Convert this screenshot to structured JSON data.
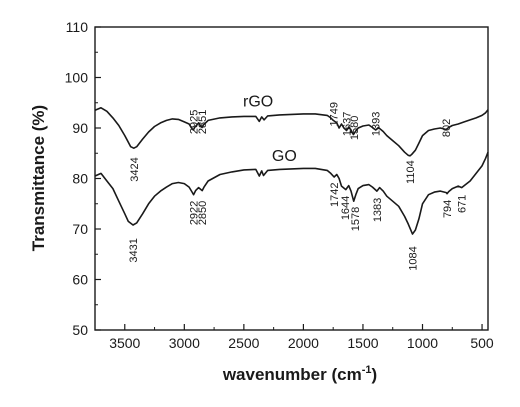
{
  "chart_data": {
    "type": "line",
    "title": "",
    "xlabel": "wavenumber (cm",
    "xlabel_sup": "-1",
    "xlabel_close": ")",
    "ylabel": "Transmittance (%)",
    "xlim": [
      3750,
      450
    ],
    "ylim": [
      50,
      110
    ],
    "x_reversed": true,
    "x_ticks": [
      3500,
      3000,
      2500,
      2000,
      1500,
      1000,
      500
    ],
    "x_tick_labels": [
      "3500",
      "3000",
      "2500",
      "2000",
      "1500",
      "1000",
      "500"
    ],
    "y_ticks": [
      50,
      60,
      70,
      80,
      90,
      100,
      110
    ],
    "y_tick_labels": [
      "50",
      "60",
      "70",
      "80",
      "90",
      "100",
      "110"
    ],
    "grid": false,
    "legend": "none",
    "line_color": "#1a1a1a",
    "series": [
      {
        "name": "rGO",
        "x": [
          3750,
          3700,
          3650,
          3600,
          3550,
          3500,
          3450,
          3424,
          3400,
          3350,
          3300,
          3250,
          3200,
          3150,
          3100,
          3050,
          3000,
          2960,
          2940,
          2925,
          2910,
          2880,
          2860,
          2851,
          2840,
          2800,
          2700,
          2600,
          2500,
          2400,
          2370,
          2350,
          2330,
          2300,
          2200,
          2100,
          2000,
          1900,
          1800,
          1770,
          1749,
          1720,
          1700,
          1680,
          1660,
          1637,
          1620,
          1600,
          1580,
          1560,
          1540,
          1500,
          1450,
          1420,
          1393,
          1370,
          1330,
          1300,
          1250,
          1200,
          1150,
          1120,
          1104,
          1090,
          1060,
          1030,
          1000,
          950,
          900,
          850,
          802,
          780,
          750,
          700,
          650,
          600,
          550,
          500,
          470,
          450
        ],
        "y": [
          93.5,
          94.0,
          93.3,
          92.0,
          90.5,
          88.5,
          86.3,
          86.0,
          86.3,
          87.8,
          89.2,
          90.3,
          91.0,
          91.5,
          91.8,
          91.7,
          91.2,
          90.8,
          90.0,
          89.6,
          90.2,
          91.0,
          90.3,
          90.1,
          90.6,
          91.5,
          92.0,
          92.2,
          92.3,
          92.3,
          91.3,
          92.2,
          91.6,
          92.4,
          92.6,
          92.7,
          92.8,
          92.8,
          92.5,
          92.0,
          91.5,
          91.0,
          90.0,
          90.8,
          90.0,
          89.5,
          90.2,
          89.6,
          88.7,
          89.4,
          90.0,
          90.4,
          90.6,
          90.1,
          89.6,
          90.1,
          89.3,
          88.5,
          87.5,
          86.5,
          85.2,
          84.6,
          84.5,
          84.8,
          85.6,
          87.0,
          88.5,
          89.5,
          89.8,
          90.0,
          89.7,
          90.1,
          90.5,
          90.8,
          91.2,
          91.6,
          92.0,
          92.5,
          93.0,
          93.6
        ]
      },
      {
        "name": "GO",
        "x": [
          3750,
          3700,
          3650,
          3600,
          3550,
          3500,
          3470,
          3431,
          3400,
          3350,
          3300,
          3250,
          3200,
          3150,
          3100,
          3050,
          3000,
          2960,
          2935,
          2922,
          2905,
          2880,
          2860,
          2850,
          2835,
          2800,
          2700,
          2600,
          2500,
          2400,
          2370,
          2350,
          2335,
          2300,
          2200,
          2100,
          2000,
          1900,
          1800,
          1770,
          1742,
          1720,
          1700,
          1680,
          1644,
          1620,
          1600,
          1578,
          1560,
          1540,
          1500,
          1450,
          1420,
          1383,
          1360,
          1330,
          1300,
          1250,
          1200,
          1150,
          1120,
          1084,
          1060,
          1030,
          1000,
          950,
          900,
          850,
          800,
          794,
          780,
          750,
          700,
          671,
          650,
          600,
          550,
          500,
          470,
          450
        ],
        "y": [
          80.5,
          81.0,
          79.5,
          78.0,
          75.5,
          73.0,
          71.5,
          70.8,
          71.2,
          73.0,
          75.0,
          76.5,
          77.5,
          78.3,
          79.0,
          79.2,
          79.0,
          78.3,
          77.3,
          76.8,
          77.6,
          78.2,
          77.8,
          77.6,
          78.3,
          79.5,
          80.8,
          81.3,
          81.7,
          81.8,
          80.5,
          81.5,
          80.6,
          81.6,
          81.8,
          81.9,
          82.0,
          82.0,
          81.6,
          81.0,
          80.3,
          80.8,
          80.0,
          78.5,
          77.8,
          78.6,
          77.5,
          75.5,
          76.8,
          78.0,
          78.6,
          78.8,
          78.3,
          77.5,
          78.2,
          77.5,
          76.5,
          75.5,
          74.5,
          72.5,
          71.0,
          69.0,
          69.8,
          72.0,
          75.0,
          76.8,
          77.3,
          77.5,
          77.2,
          77.0,
          77.4,
          78.0,
          78.5,
          78.2,
          78.6,
          79.5,
          81.0,
          82.5,
          84.0,
          85.2
        ]
      }
    ],
    "annotations": [
      {
        "text": "rGO",
        "x": 2380,
        "y": 94.3,
        "kind": "series"
      },
      {
        "text": "GO",
        "x": 2160,
        "y": 83.5,
        "kind": "series"
      },
      {
        "text": "3424",
        "x": 3424,
        "y": 84.2,
        "kind": "below"
      },
      {
        "text": "2925",
        "x": 2925,
        "y": 88.8,
        "kind": "above"
      },
      {
        "text": "2851",
        "x": 2851,
        "y": 88.8,
        "kind": "above"
      },
      {
        "text": "1749",
        "x": 1749,
        "y": 90.3,
        "kind": "above"
      },
      {
        "text": "1637",
        "x": 1637,
        "y": 88.4,
        "kind": "above"
      },
      {
        "text": "1580",
        "x": 1575,
        "y": 87.6,
        "kind": "above"
      },
      {
        "text": "1393",
        "x": 1393,
        "y": 88.4,
        "kind": "above"
      },
      {
        "text": "1104",
        "x": 1104,
        "y": 83.6,
        "kind": "below"
      },
      {
        "text": "802",
        "x": 802,
        "y": 88.2,
        "kind": "above"
      },
      {
        "text": "2922",
        "x": 2922,
        "y": 75.6,
        "kind": "below"
      },
      {
        "text": "2850",
        "x": 2850,
        "y": 75.6,
        "kind": "below"
      },
      {
        "text": "1742",
        "x": 1742,
        "y": 79.2,
        "kind": "below"
      },
      {
        "text": "1644",
        "x": 1650,
        "y": 76.6,
        "kind": "below"
      },
      {
        "text": "1578",
        "x": 1565,
        "y": 74.4,
        "kind": "below"
      },
      {
        "text": "1383",
        "x": 1383,
        "y": 76.2,
        "kind": "below"
      },
      {
        "text": "3431",
        "x": 3431,
        "y": 68.2,
        "kind": "below"
      },
      {
        "text": "1084",
        "x": 1084,
        "y": 66.6,
        "kind": "below"
      },
      {
        "text": "794",
        "x": 794,
        "y": 75.8,
        "kind": "below"
      },
      {
        "text": "671",
        "x": 671,
        "y": 76.8,
        "kind": "below"
      }
    ]
  }
}
